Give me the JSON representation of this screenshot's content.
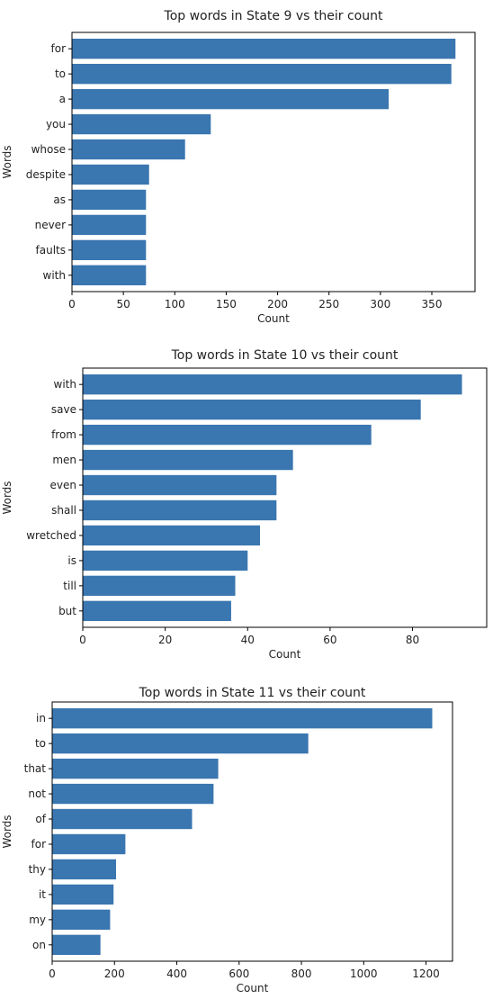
{
  "colors": {
    "bar": "#3a76b0",
    "axis": "#000000",
    "text": "#222222"
  },
  "chart_data": [
    {
      "type": "bar",
      "orientation": "horizontal",
      "title": "Top words in State 9 vs their count",
      "xlabel": "Count",
      "ylabel": "Words",
      "categories": [
        "for",
        "to",
        "a",
        "you",
        "whose",
        "despite",
        "as",
        "never",
        "faults",
        "with"
      ],
      "values": [
        373,
        369,
        308,
        135,
        110,
        75,
        72,
        72,
        72,
        72
      ],
      "xlim": [
        0,
        392
      ],
      "xticks": [
        0,
        50,
        100,
        150,
        200,
        250,
        300,
        350
      ],
      "grid": false
    },
    {
      "type": "bar",
      "orientation": "horizontal",
      "title": "Top words in State 10 vs their count",
      "xlabel": "Count",
      "ylabel": "Words",
      "categories": [
        "with",
        "save",
        "from",
        "men",
        "even",
        "shall",
        "wretched",
        "is",
        "till",
        "but"
      ],
      "values": [
        92,
        82,
        70,
        51,
        47,
        47,
        43,
        40,
        37,
        36
      ],
      "xlim": [
        0,
        98
      ],
      "xticks": [
        0,
        20,
        40,
        60,
        80
      ],
      "grid": false
    },
    {
      "type": "bar",
      "orientation": "horizontal",
      "title": "Top words in State 11 vs their count",
      "xlabel": "Count",
      "ylabel": "Words",
      "categories": [
        "in",
        "to",
        "that",
        "not",
        "of",
        "for",
        "thy",
        "it",
        "my",
        "on"
      ],
      "values": [
        1220,
        822,
        533,
        518,
        449,
        235,
        205,
        197,
        186,
        155
      ],
      "xlim": [
        0,
        1285
      ],
      "xticks": [
        0,
        200,
        400,
        600,
        800,
        1000,
        1200
      ],
      "grid": false
    }
  ]
}
